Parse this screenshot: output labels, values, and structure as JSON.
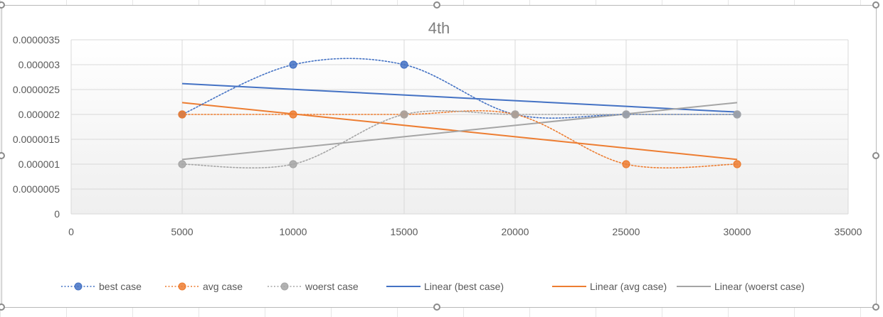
{
  "chart_data": {
    "type": "scatter",
    "title": "4th",
    "xlim": [
      0,
      35000
    ],
    "ylim": [
      0,
      3.5e-06
    ],
    "x_ticks": [
      "0",
      "5000",
      "10000",
      "15000",
      "20000",
      "25000",
      "30000",
      "35000"
    ],
    "y_ticks": [
      "0",
      "0.0000005",
      "0.000001",
      "0.0000015",
      "0.000002",
      "0.0000025",
      "0.000003",
      "0.0000035"
    ],
    "grid": true,
    "legend_position": "bottom",
    "x": [
      5000,
      10000,
      15000,
      20000,
      25000,
      30000
    ],
    "series": [
      {
        "name": "best case",
        "values": [
          2e-06,
          3e-06,
          3e-06,
          2e-06,
          2e-06,
          2e-06
        ],
        "color": "#4472C4",
        "style": "dotted-smooth"
      },
      {
        "name": "avg case",
        "values": [
          2e-06,
          2e-06,
          2e-06,
          2e-06,
          1e-06,
          1e-06
        ],
        "color": "#ED7D31",
        "style": "dotted-smooth"
      },
      {
        "name": "woerst case",
        "values": [
          1e-06,
          1e-06,
          2e-06,
          2e-06,
          2e-06,
          2e-06
        ],
        "color": "#A5A5A5",
        "style": "dotted-smooth"
      }
    ],
    "trendlines": [
      {
        "name": "Linear (best case)",
        "source": "best case",
        "color": "#4472C4"
      },
      {
        "name": "Linear (avg case)",
        "source": "avg case",
        "color": "#ED7D31"
      },
      {
        "name": "Linear (woerst case)",
        "source": "woerst case",
        "color": "#A5A5A5"
      }
    ]
  }
}
